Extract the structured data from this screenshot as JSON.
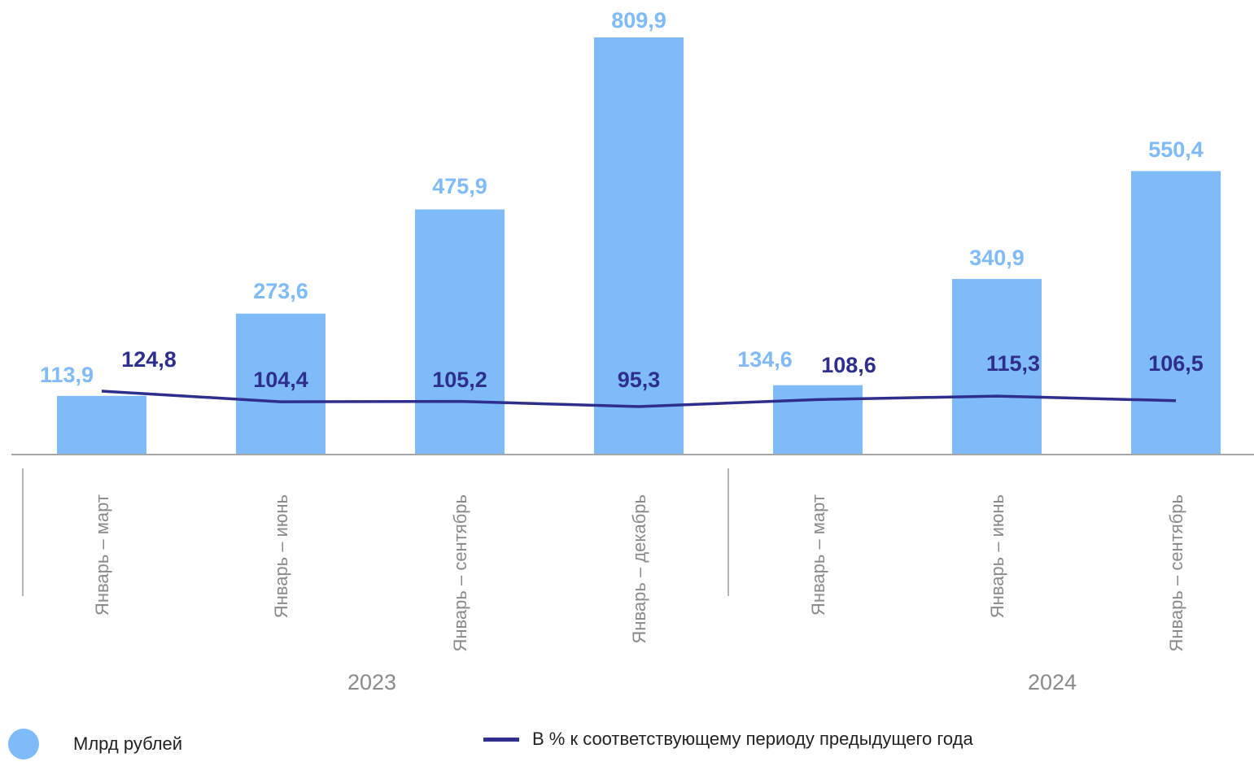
{
  "chart_data": {
    "type": "bar",
    "categories": [
      "Январь – март",
      "Январь – июнь",
      "Январь – сентябрь",
      "Январь – декабрь",
      "Январь – март",
      "Январь – июнь",
      "Январь – сентябрь"
    ],
    "groups": [
      {
        "label": "2023",
        "start": 0,
        "end": 3
      },
      {
        "label": "2024",
        "start": 4,
        "end": 6
      }
    ],
    "series": [
      {
        "name": "Млрд рублей",
        "type": "bar",
        "color": "#7fbaf9",
        "values": [
          113.9,
          273.6,
          475.9,
          809.9,
          134.6,
          340.9,
          550.4
        ]
      },
      {
        "name": "В % к соответствующему периоду предыдущего года",
        "type": "line",
        "color": "#2e2e8c",
        "values": [
          124.8,
          104.4,
          105.2,
          95.3,
          108.6,
          115.3,
          106.5
        ]
      }
    ],
    "bar_value_labels": [
      "113,9",
      "273,6",
      "475,9",
      "809,9",
      "134,6",
      "340,9",
      "550,4"
    ],
    "line_value_labels": [
      "124,8",
      "104,4",
      "105,2",
      "95,3",
      "108,6",
      "115,3",
      "106,5"
    ],
    "grid": false,
    "legend_position": "bottom"
  },
  "legend": {
    "bar_label": "Млрд рублей",
    "line_label": "В % к соответствующему периоду предыдущего года"
  }
}
